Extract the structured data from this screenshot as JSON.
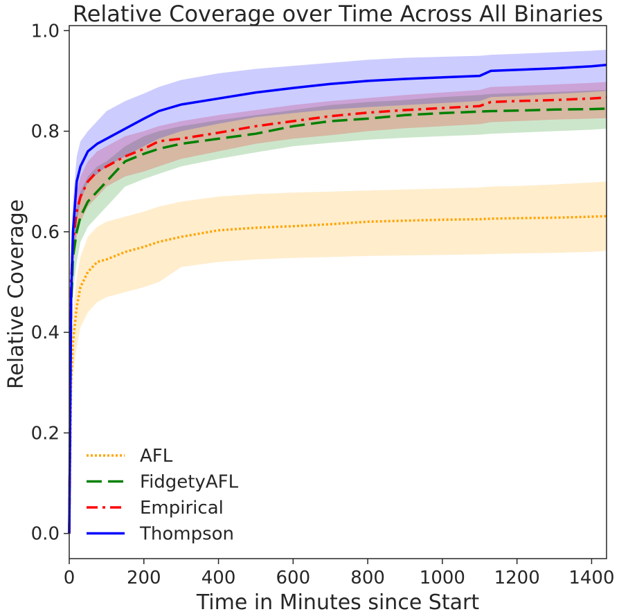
{
  "chart_data": {
    "type": "line",
    "title": "Relative Coverage over Time Across All Binaries",
    "xlabel": "Time in Minutes since Start",
    "ylabel": "Relative Coverage",
    "xlim": [
      0,
      1440
    ],
    "ylim": [
      -0.05,
      1.01
    ],
    "x_ticks": [
      0,
      200,
      400,
      600,
      800,
      1000,
      1200,
      1400
    ],
    "y_ticks": [
      0.0,
      0.2,
      0.4,
      0.6,
      0.8,
      1.0
    ],
    "x_tick_labels": [
      "0",
      "200",
      "400",
      "600",
      "800",
      "1000",
      "1200",
      "1400"
    ],
    "y_tick_labels": [
      "0.0",
      "0.2",
      "0.4",
      "0.6",
      "0.8",
      "1.0"
    ],
    "grid": false,
    "legend_position": "lower-left",
    "x": [
      0,
      5,
      10,
      20,
      30,
      50,
      75,
      100,
      150,
      200,
      240,
      300,
      400,
      500,
      600,
      700,
      800,
      900,
      1000,
      1100,
      1130,
      1200,
      1300,
      1400,
      1440
    ],
    "series": [
      {
        "name": "AFL",
        "color": "#ffa500",
        "dash": "dotted",
        "values": [
          0.0,
          0.3,
          0.38,
          0.45,
          0.49,
          0.52,
          0.54,
          0.545,
          0.56,
          0.57,
          0.58,
          0.59,
          0.603,
          0.608,
          0.611,
          0.615,
          0.62,
          0.622,
          0.624,
          0.625,
          0.626,
          0.627,
          0.628,
          0.63,
          0.631
        ],
        "lower": [
          0.0,
          0.25,
          0.32,
          0.37,
          0.41,
          0.44,
          0.46,
          0.47,
          0.48,
          0.49,
          0.5,
          0.53,
          0.54,
          0.545,
          0.548,
          0.55,
          0.552,
          0.553,
          0.554,
          0.555,
          0.556,
          0.557,
          0.558,
          0.56,
          0.562
        ],
        "upper": [
          0.0,
          0.35,
          0.44,
          0.51,
          0.55,
          0.59,
          0.61,
          0.62,
          0.63,
          0.64,
          0.65,
          0.66,
          0.67,
          0.675,
          0.678,
          0.68,
          0.682,
          0.684,
          0.686,
          0.688,
          0.69,
          0.691,
          0.694,
          0.698,
          0.7
        ]
      },
      {
        "name": "FidgetyAFL",
        "color": "#008000",
        "dash": "dashed",
        "values": [
          0.0,
          0.45,
          0.55,
          0.6,
          0.63,
          0.66,
          0.68,
          0.7,
          0.74,
          0.755,
          0.765,
          0.775,
          0.785,
          0.795,
          0.81,
          0.82,
          0.825,
          0.832,
          0.836,
          0.839,
          0.84,
          0.841,
          0.843,
          0.844,
          0.845
        ],
        "lower": [
          0.0,
          0.4,
          0.48,
          0.54,
          0.58,
          0.61,
          0.63,
          0.65,
          0.69,
          0.705,
          0.715,
          0.73,
          0.745,
          0.758,
          0.77,
          0.777,
          0.783,
          0.787,
          0.79,
          0.793,
          0.795,
          0.797,
          0.8,
          0.803,
          0.805
        ],
        "upper": [
          0.0,
          0.5,
          0.59,
          0.65,
          0.68,
          0.71,
          0.73,
          0.74,
          0.77,
          0.79,
          0.8,
          0.81,
          0.822,
          0.832,
          0.842,
          0.852,
          0.858,
          0.862,
          0.868,
          0.872,
          0.874,
          0.876,
          0.878,
          0.881,
          0.882
        ]
      },
      {
        "name": "Empirical",
        "color": "#ff0000",
        "dash": "dashdot",
        "values": [
          0.0,
          0.5,
          0.58,
          0.64,
          0.67,
          0.7,
          0.72,
          0.73,
          0.75,
          0.765,
          0.78,
          0.785,
          0.797,
          0.81,
          0.82,
          0.83,
          0.837,
          0.842,
          0.846,
          0.85,
          0.858,
          0.86,
          0.862,
          0.865,
          0.867
        ],
        "lower": [
          0.0,
          0.45,
          0.53,
          0.59,
          0.62,
          0.65,
          0.67,
          0.69,
          0.71,
          0.72,
          0.73,
          0.745,
          0.76,
          0.775,
          0.785,
          0.792,
          0.8,
          0.806,
          0.81,
          0.814,
          0.818,
          0.82,
          0.823,
          0.825,
          0.826
        ],
        "upper": [
          0.0,
          0.55,
          0.63,
          0.68,
          0.71,
          0.74,
          0.76,
          0.77,
          0.79,
          0.8,
          0.81,
          0.82,
          0.832,
          0.842,
          0.852,
          0.86,
          0.866,
          0.872,
          0.877,
          0.882,
          0.888,
          0.89,
          0.893,
          0.896,
          0.898
        ]
      },
      {
        "name": "Thompson",
        "color": "#0000ff",
        "dash": "solid",
        "values": [
          0.0,
          0.47,
          0.6,
          0.7,
          0.73,
          0.76,
          0.775,
          0.785,
          0.805,
          0.825,
          0.84,
          0.853,
          0.865,
          0.877,
          0.886,
          0.894,
          0.9,
          0.904,
          0.907,
          0.91,
          0.92,
          0.922,
          0.925,
          0.929,
          0.932
        ],
        "lower": [
          0.0,
          0.4,
          0.53,
          0.62,
          0.66,
          0.7,
          0.715,
          0.73,
          0.75,
          0.77,
          0.785,
          0.8,
          0.815,
          0.828,
          0.836,
          0.843,
          0.848,
          0.852,
          0.856,
          0.86,
          0.868,
          0.87,
          0.874,
          0.878,
          0.88
        ],
        "upper": [
          0.0,
          0.55,
          0.66,
          0.75,
          0.78,
          0.8,
          0.82,
          0.84,
          0.86,
          0.875,
          0.888,
          0.902,
          0.915,
          0.924,
          0.93,
          0.936,
          0.942,
          0.946,
          0.948,
          0.95,
          0.952,
          0.954,
          0.957,
          0.96,
          0.962
        ]
      }
    ]
  }
}
